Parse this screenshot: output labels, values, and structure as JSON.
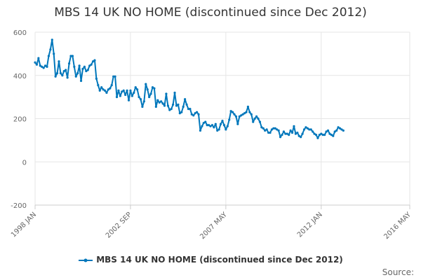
{
  "chart_data": {
    "type": "line",
    "title": "MBS 14 UK NO HOME (discontinued since Dec 2012)",
    "xlabel": "",
    "ylabel": "",
    "ylim": [
      -200,
      600
    ],
    "y_ticks": [
      -200,
      0,
      200,
      400,
      600
    ],
    "x_domain": [
      1998.0,
      2016.333
    ],
    "x_ticks": [
      {
        "label": "1998 JAN",
        "year": 1998.0
      },
      {
        "label": "2002 SEP",
        "year": 2002.667
      },
      {
        "label": "2007 MAY",
        "year": 2007.333
      },
      {
        "label": "2012 JAN",
        "year": 2012.0
      },
      {
        "label": "2016 MAY",
        "year": 2016.333
      }
    ],
    "grid": true,
    "legend_position": "bottom-center",
    "color": "#0077bb",
    "series": [
      {
        "name": "MBS 14 UK NO HOME (discontinued since Dec 2012)",
        "x_start": 1998.0,
        "x_step_months": 1,
        "values": [
          460,
          450,
          480,
          445,
          440,
          435,
          445,
          440,
          490,
          520,
          565,
          500,
          395,
          410,
          465,
          410,
          400,
          420,
          425,
          390,
          455,
          490,
          490,
          440,
          395,
          410,
          445,
          375,
          430,
          440,
          420,
          425,
          445,
          450,
          465,
          470,
          385,
          355,
          330,
          345,
          335,
          330,
          320,
          335,
          340,
          355,
          395,
          395,
          300,
          330,
          305,
          325,
          330,
          310,
          330,
          285,
          330,
          305,
          320,
          345,
          335,
          300,
          290,
          255,
          280,
          360,
          335,
          300,
          315,
          345,
          340,
          255,
          285,
          275,
          280,
          270,
          260,
          315,
          260,
          240,
          245,
          265,
          320,
          260,
          265,
          225,
          230,
          255,
          290,
          265,
          245,
          245,
          220,
          215,
          225,
          230,
          220,
          145,
          165,
          180,
          185,
          170,
          170,
          165,
          170,
          160,
          175,
          145,
          150,
          175,
          190,
          170,
          150,
          165,
          195,
          235,
          230,
          220,
          210,
          175,
          210,
          215,
          220,
          225,
          230,
          255,
          230,
          220,
          185,
          200,
          210,
          200,
          185,
          160,
          155,
          145,
          150,
          135,
          135,
          150,
          155,
          155,
          150,
          145,
          115,
          125,
          140,
          130,
          130,
          125,
          145,
          135,
          165,
          130,
          135,
          120,
          115,
          130,
          150,
          160,
          155,
          150,
          150,
          140,
          130,
          125,
          110,
          125,
          130,
          125,
          125,
          140,
          145,
          130,
          125,
          120,
          140,
          145,
          160,
          155,
          150,
          145
        ]
      }
    ]
  },
  "legend": {
    "label": "MBS 14 UK NO HOME (discontinued since Dec 2012)"
  },
  "footer": {
    "source_label": "Source:"
  }
}
